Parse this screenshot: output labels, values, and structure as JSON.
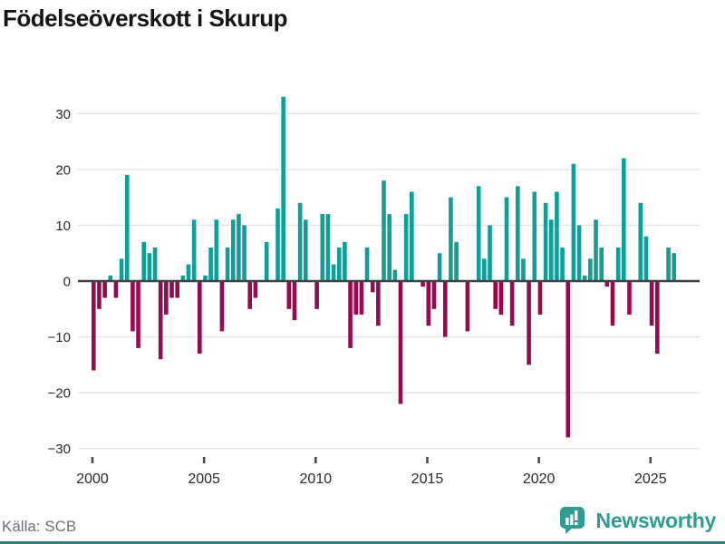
{
  "title": "Födelseöverskott i Skurup",
  "source": "Källa: SCB",
  "logo": {
    "text": "Newsworthy",
    "icon": "newsworthy-bar-chart-bubble-icon"
  },
  "colors": {
    "positive": "#0f9e99",
    "negative": "#98094f",
    "zero_line": "#3d4247",
    "gridline": "#e4e4e4",
    "axis_text": "#2b2b2b",
    "tick_mark": "#4a4a4a",
    "source_text": "#70707a",
    "brand": "#2f9c94",
    "footer_strip": "#2f7c7c",
    "title_text": "#151515"
  },
  "chart_data": {
    "type": "bar",
    "title": "Födelseöverskott i Skurup",
    "xlabel": "",
    "ylabel": "",
    "unit": "quarter",
    "x_start": "2000Q1",
    "x_end": "2026Q1",
    "yticks": [
      -30,
      -20,
      -10,
      0,
      10,
      20,
      30
    ],
    "ylim": [
      -33,
      35
    ],
    "xticks": [
      2000,
      2005,
      2010,
      2015,
      2020,
      2025
    ],
    "grid": true,
    "legend": "none",
    "series_by_year": [
      {
        "year": 2000,
        "values": [
          -16,
          -5,
          -3,
          1
        ]
      },
      {
        "year": 2001,
        "values": [
          -3,
          4,
          19,
          -9
        ]
      },
      {
        "year": 2002,
        "values": [
          -12,
          7,
          5,
          6
        ]
      },
      {
        "year": 2003,
        "values": [
          -14,
          -6,
          -3,
          -3
        ]
      },
      {
        "year": 2004,
        "values": [
          1,
          3,
          11,
          -13
        ]
      },
      {
        "year": 2005,
        "values": [
          1,
          6,
          11,
          -9
        ]
      },
      {
        "year": 2006,
        "values": [
          6,
          11,
          12,
          10
        ]
      },
      {
        "year": 2007,
        "values": [
          -5,
          -3,
          0,
          7
        ]
      },
      {
        "year": 2008,
        "values": [
          0,
          13,
          33,
          -5
        ]
      },
      {
        "year": 2009,
        "values": [
          -7,
          14,
          11,
          0
        ]
      },
      {
        "year": 2010,
        "values": [
          -5,
          12,
          12,
          3
        ]
      },
      {
        "year": 2011,
        "values": [
          6,
          7,
          -12,
          -6
        ]
      },
      {
        "year": 2012,
        "values": [
          -6,
          6,
          -2,
          -8
        ]
      },
      {
        "year": 2013,
        "values": [
          18,
          12,
          2,
          -22
        ]
      },
      {
        "year": 2014,
        "values": [
          12,
          16,
          0,
          -1
        ]
      },
      {
        "year": 2015,
        "values": [
          -8,
          -5,
          5,
          -10
        ]
      },
      {
        "year": 2016,
        "values": [
          15,
          7,
          0,
          -9
        ]
      },
      {
        "year": 2017,
        "values": [
          0,
          17,
          4,
          10
        ]
      },
      {
        "year": 2018,
        "values": [
          -5,
          -6,
          15,
          -8
        ]
      },
      {
        "year": 2019,
        "values": [
          17,
          4,
          -15,
          16
        ]
      },
      {
        "year": 2020,
        "values": [
          -6,
          14,
          11,
          16
        ]
      },
      {
        "year": 2021,
        "values": [
          6,
          -28,
          21,
          10
        ]
      },
      {
        "year": 2022,
        "values": [
          1,
          4,
          11,
          6
        ]
      },
      {
        "year": 2023,
        "values": [
          -1,
          -8,
          6,
          22
        ]
      },
      {
        "year": 2024,
        "values": [
          -6,
          0,
          14,
          8
        ]
      },
      {
        "year": 2025,
        "values": [
          -8,
          -13,
          0,
          6
        ]
      },
      {
        "year": 2026,
        "values": [
          5
        ]
      }
    ]
  }
}
